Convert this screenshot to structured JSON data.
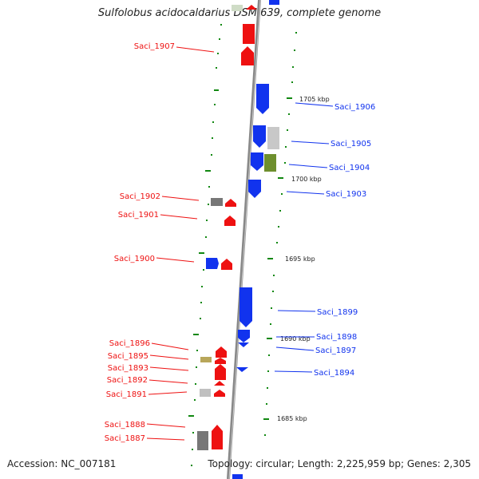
{
  "title": "Sulfolobus acidocaldarius DSM 639, complete genome",
  "footer": {
    "accession": "Accession: NC_007181",
    "summary": "Topology: circular; Length: 2,225,959 bp; Genes: 2,305"
  },
  "colors": {
    "forward": "#ee1111",
    "reverse": "#1133ee",
    "backbone": "#888888",
    "ticks": "#118811"
  },
  "scale_labels": [
    "1705 kbp",
    "1700 kbp",
    "1695 kbp",
    "1690 kbp",
    "1685 kbp"
  ],
  "genes": [
    {
      "name": "Saci_1907",
      "strand": "forward"
    },
    {
      "name": "Saci_1906",
      "strand": "reverse"
    },
    {
      "name": "Saci_1905",
      "strand": "reverse"
    },
    {
      "name": "Saci_1904",
      "strand": "reverse"
    },
    {
      "name": "Saci_1903",
      "strand": "reverse"
    },
    {
      "name": "Saci_1902",
      "strand": "forward"
    },
    {
      "name": "Saci_1901",
      "strand": "forward"
    },
    {
      "name": "Saci_1900",
      "strand": "forward"
    },
    {
      "name": "Saci_1899",
      "strand": "reverse"
    },
    {
      "name": "Saci_1898",
      "strand": "reverse"
    },
    {
      "name": "Saci_1897",
      "strand": "reverse"
    },
    {
      "name": "Saci_1896",
      "strand": "forward"
    },
    {
      "name": "Saci_1895",
      "strand": "forward"
    },
    {
      "name": "Saci_1894",
      "strand": "reverse"
    },
    {
      "name": "Saci_1893",
      "strand": "forward"
    },
    {
      "name": "Saci_1892",
      "strand": "forward"
    },
    {
      "name": "Saci_1891",
      "strand": "forward"
    },
    {
      "name": "Saci_1888",
      "strand": "forward"
    },
    {
      "name": "Saci_1887",
      "strand": "forward"
    }
  ]
}
